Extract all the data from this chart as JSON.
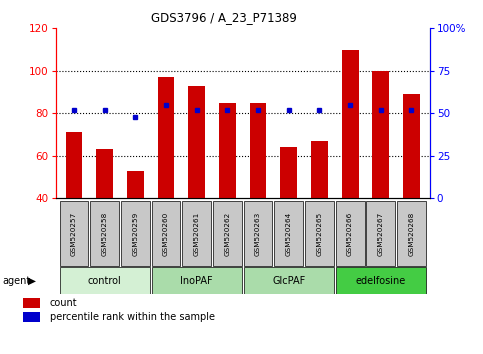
{
  "title": "GDS3796 / A_23_P71389",
  "samples": [
    "GSM520257",
    "GSM520258",
    "GSM520259",
    "GSM520260",
    "GSM520261",
    "GSM520262",
    "GSM520263",
    "GSM520264",
    "GSM520265",
    "GSM520266",
    "GSM520267",
    "GSM520268"
  ],
  "counts": [
    71,
    63,
    53,
    97,
    93,
    85,
    85,
    64,
    67,
    110,
    100,
    89
  ],
  "percentiles": [
    52,
    52,
    48,
    55,
    52,
    52,
    52,
    52,
    52,
    55,
    52,
    52
  ],
  "groups": [
    {
      "label": "control",
      "indices": [
        0,
        1,
        2
      ],
      "color": "#d4f0d4"
    },
    {
      "label": "InoPAF",
      "indices": [
        3,
        4,
        5
      ],
      "color": "#aadcaa"
    },
    {
      "label": "GlcPAF",
      "indices": [
        6,
        7,
        8
      ],
      "color": "#aadcaa"
    },
    {
      "label": "edelfosine",
      "indices": [
        9,
        10,
        11
      ],
      "color": "#44cc44"
    }
  ],
  "bar_color": "#cc0000",
  "dot_color": "#0000cc",
  "left_ylim": [
    40,
    120
  ],
  "right_ylim": [
    0,
    100
  ],
  "left_yticks": [
    40,
    60,
    80,
    100,
    120
  ],
  "right_yticks": [
    0,
    25,
    50,
    75,
    100
  ],
  "right_yticklabels": [
    "0",
    "25",
    "50",
    "75",
    "100%"
  ],
  "grid_values": [
    60,
    80,
    100
  ],
  "bar_width": 0.55
}
